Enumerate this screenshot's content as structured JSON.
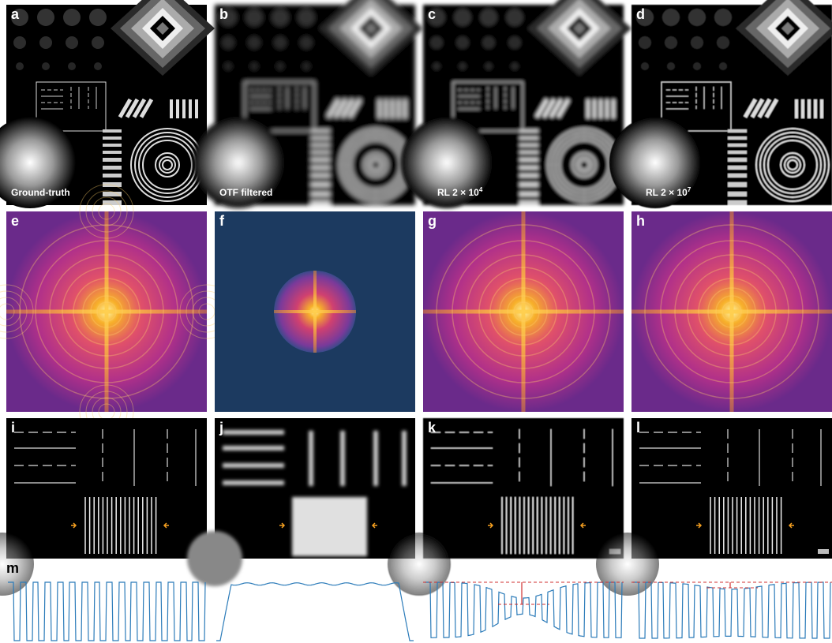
{
  "panels": [
    {
      "letter": "a",
      "label": {
        "text": "Ground-truth"
      }
    },
    {
      "letter": "b",
      "label": {
        "text": "OTF filtered"
      }
    },
    {
      "letter": "c",
      "label": {
        "text": "RL 2 × 10",
        "exponent": "4"
      }
    },
    {
      "letter": "d",
      "label": {
        "text": "RL 2 × 10",
        "exponent": "7"
      }
    },
    {
      "letter": "e"
    },
    {
      "letter": "f"
    },
    {
      "letter": "g"
    },
    {
      "letter": "h"
    },
    {
      "letter": "i"
    },
    {
      "letter": "j"
    },
    {
      "letter": "k"
    },
    {
      "letter": "l"
    },
    {
      "letter": "m"
    }
  ]
}
